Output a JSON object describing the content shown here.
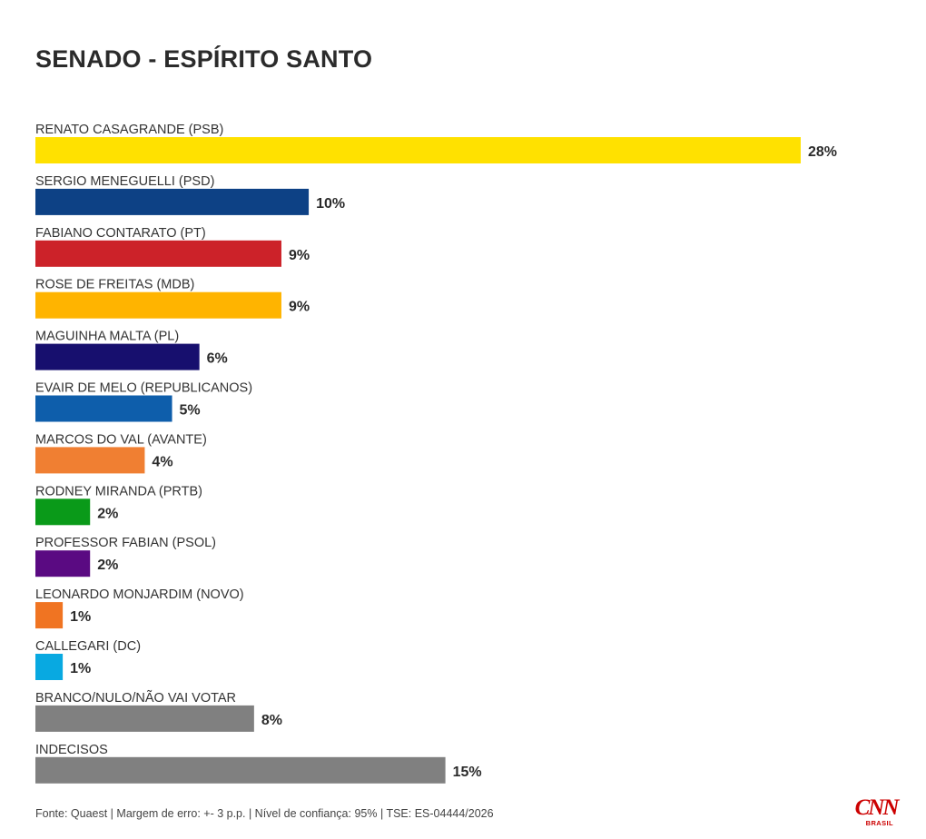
{
  "title": "SENADO - ESPÍRITO SANTO",
  "source": "Fonte: Quaest | Margem de erro: +- 3 p.p. | Nível de confiança: 95% | TSE: ES-04444/2026",
  "logo": {
    "text": "CNN",
    "subtext": "BRASIL"
  },
  "chart_data": {
    "type": "bar",
    "orientation": "horizontal",
    "title": "SENADO - ESPÍRITO SANTO",
    "unit": "%",
    "categories": [
      "RENATO CASAGRANDE (PSB)",
      "SERGIO MENEGUELLI (PSD)",
      "FABIANO CONTARATO (PT)",
      "ROSE DE FREITAS (MDB)",
      "MAGUINHA MALTA (PL)",
      "EVAIR DE MELO (REPUBLICANOS)",
      "MARCOS DO VAL (AVANTE)",
      "RODNEY MIRANDA (PRTB)",
      "PROFESSOR FABIAN (PSOL)",
      "LEONARDO MONJARDIM (NOVO)",
      "CALLEGARI (DC)",
      "BRANCO/NULO/NÃO VAI VOTAR",
      "INDECISOS"
    ],
    "values": [
      28,
      10,
      9,
      9,
      6,
      5,
      4,
      2,
      2,
      1,
      1,
      8,
      15
    ],
    "value_labels": [
      "28%",
      "10%",
      "9%",
      "9%",
      "6%",
      "5%",
      "4%",
      "2%",
      "2%",
      "1%",
      "1%",
      "8%",
      "15%"
    ],
    "colors": [
      "#ffe100",
      "#0d4185",
      "#cc2229",
      "#ffb400",
      "#170f6e",
      "#0e5eab",
      "#f07f32",
      "#0a9a19",
      "#5a0a82",
      "#f07422",
      "#08a9e1",
      "#808080",
      "#808080"
    ],
    "xlim": [
      0,
      28
    ],
    "grid": false,
    "legend": "none"
  }
}
